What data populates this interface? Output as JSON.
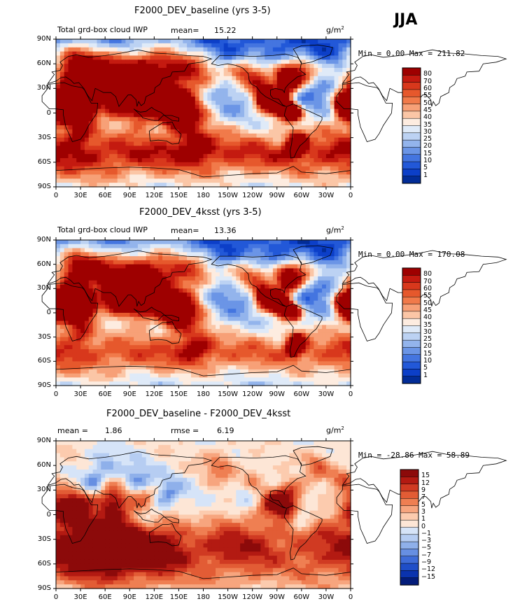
{
  "season": "JJA",
  "unit_base": "g/m",
  "unit_exp": "2",
  "panels": [
    {
      "title": "F2000_DEV_baseline (yrs 3-5)",
      "left_label": "Total grd-box cloud IWP",
      "mean_label": "mean=",
      "mean_value": "15.22",
      "minmax": "Min =   0.00 Max = 211.82"
    },
    {
      "title": "F2000_DEV_4ksst (yrs 3-5)",
      "left_label": "Total grd-box cloud IWP",
      "mean_label": "mean=",
      "mean_value": "13.36",
      "minmax": "Min =   0.00 Max = 170.08"
    },
    {
      "title": "F2000_DEV_baseline - F2000_DEV_4ksst",
      "mean_label": "mean =",
      "mean_value": "1.86",
      "rmse_label": "rmse =",
      "rmse_value": "6.19",
      "minmax": "Min = -28.86 Max =  58.89"
    }
  ],
  "chart_data": [
    {
      "type": "heatmap",
      "title": "F2000_DEV_baseline (yrs 3-5)",
      "variable": "Total grd-box cloud IWP",
      "units": "g/m2",
      "mean": 15.22,
      "min": 0.0,
      "max": 211.82,
      "x_ticks": [
        "0",
        "30E",
        "60E",
        "90E",
        "120E",
        "150E",
        "180",
        "150W",
        "120W",
        "90W",
        "60W",
        "30W",
        "0"
      ],
      "y_ticks": [
        "90N",
        "60N",
        "30N",
        "0",
        "30S",
        "60S",
        "90S"
      ],
      "xlim": [
        0,
        360
      ],
      "ylim": [
        -90,
        90
      ],
      "colorbar_levels": [
        "80",
        "70",
        "60",
        "55",
        "50",
        "45",
        "40",
        "35",
        "30",
        "25",
        "20",
        "15",
        "10",
        "5",
        "1"
      ],
      "colorbar_colors": [
        "#9e0000",
        "#c41a10",
        "#d8381c",
        "#e6582c",
        "#f17a4a",
        "#f7a077",
        "#fbc6a6",
        "#fdece0",
        "#dfeaf8",
        "#bcd2f3",
        "#93b4ec",
        "#6b95e6",
        "#4475e0",
        "#2258d8",
        "#0c3fc8",
        "#022c97"
      ]
    },
    {
      "type": "heatmap",
      "title": "F2000_DEV_4ksst (yrs 3-5)",
      "variable": "Total grd-box cloud IWP",
      "units": "g/m2",
      "mean": 13.36,
      "min": 0.0,
      "max": 170.08,
      "x_ticks": [
        "0",
        "30E",
        "60E",
        "90E",
        "120E",
        "150E",
        "180",
        "150W",
        "120W",
        "90W",
        "60W",
        "30W",
        "0"
      ],
      "y_ticks": [
        "90N",
        "60N",
        "30N",
        "0",
        "30S",
        "60S",
        "90S"
      ],
      "xlim": [
        0,
        360
      ],
      "ylim": [
        -90,
        90
      ],
      "colorbar_levels": [
        "80",
        "70",
        "60",
        "55",
        "50",
        "45",
        "40",
        "35",
        "30",
        "25",
        "20",
        "15",
        "10",
        "5",
        "1"
      ],
      "colorbar_colors": [
        "#9e0000",
        "#c41a10",
        "#d8381c",
        "#e6582c",
        "#f17a4a",
        "#f7a077",
        "#fbc6a6",
        "#fdece0",
        "#dfeaf8",
        "#bcd2f3",
        "#93b4ec",
        "#6b95e6",
        "#4475e0",
        "#2258d8",
        "#0c3fc8",
        "#022c97"
      ]
    },
    {
      "type": "heatmap",
      "title": "F2000_DEV_baseline - F2000_DEV_4ksst",
      "units": "g/m2",
      "mean": 1.86,
      "rmse": 6.19,
      "min": -28.86,
      "max": 58.89,
      "x_ticks": [
        "0",
        "30E",
        "60E",
        "90E",
        "120E",
        "150E",
        "180",
        "150W",
        "120W",
        "90W",
        "60W",
        "30W",
        "0"
      ],
      "y_ticks": [
        "90N",
        "60N",
        "30N",
        "0",
        "30S",
        "60S",
        "90S"
      ],
      "xlim": [
        0,
        360
      ],
      "ylim": [
        -90,
        90
      ],
      "colorbar_levels": [
        "15",
        "12",
        "9",
        "7",
        "5",
        "3",
        "1",
        "0",
        "−1",
        "−3",
        "−5",
        "−7",
        "−9",
        "−12",
        "−15"
      ],
      "colorbar_colors": [
        "#8c0a0a",
        "#b31a12",
        "#d03a22",
        "#e25c35",
        "#ef7f52",
        "#f7a57e",
        "#fccbae",
        "#fde6d6",
        "#d6e4f8",
        "#b6cdf2",
        "#8fb0ea",
        "#678fe2",
        "#3f6cd8",
        "#1f4ec8",
        "#0a33ae",
        "#031c7a"
      ]
    }
  ]
}
